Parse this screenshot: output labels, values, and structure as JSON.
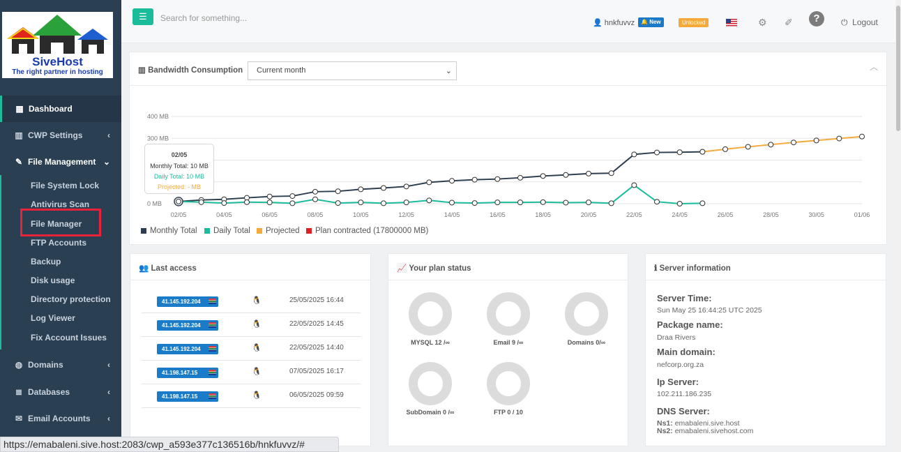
{
  "brand": {
    "name": "SiveHost",
    "tagline": "The right partner in hosting"
  },
  "sidebar": {
    "items": [
      {
        "label": "Dashboard",
        "icon": "dashboard-icon"
      },
      {
        "label": "CWP Settings",
        "icon": "bar-chart-icon"
      },
      {
        "label": "File Management",
        "icon": "edit-icon"
      },
      {
        "label": "Domains",
        "icon": "globe-icon"
      },
      {
        "label": "Databases",
        "icon": "database-icon"
      },
      {
        "label": "Email Accounts",
        "icon": "envelope-icon"
      }
    ],
    "file_management_sub": [
      "File System Lock",
      "Antivirus Scan",
      "File Manager",
      "FTP Accounts",
      "Backup",
      "Disk usage",
      "Directory protection",
      "Log Viewer",
      "Fix Account Issues"
    ]
  },
  "topbar": {
    "search_placeholder": "Search for something...",
    "username": "hnkfuvvz",
    "new_badge": "New",
    "unlocked_badge": "Unlocked",
    "logout_label": "Logout"
  },
  "bandwidth": {
    "title": "Bandwidth Consumption",
    "period": "Current month",
    "tooltip": {
      "date": "02/05",
      "monthly": "Monthly Total: 10 MB",
      "daily": "Daily Total: 10 MB",
      "projected": "Projected: - MB"
    },
    "legend": [
      "Monthly Total",
      "Daily Total",
      "Projected",
      "Plan contracted (17800000 MB)"
    ],
    "colors": {
      "monthly": "#2c3e50",
      "daily": "#1abc9c",
      "projected": "#f5a93a",
      "plan": "#e02020"
    }
  },
  "chart_data": {
    "type": "line",
    "ylim": [
      0,
      400
    ],
    "yticks": [
      "0 MB",
      "100 MB",
      "200 MB",
      "300 MB",
      "400 MB"
    ],
    "yticks_visible": [
      "0 MB",
      "300 MB",
      "400 MB"
    ],
    "xticks": [
      "02/05",
      "04/05",
      "06/05",
      "08/05",
      "10/05",
      "12/05",
      "14/05",
      "16/05",
      "18/05",
      "20/05",
      "22/05",
      "24/05",
      "26/05",
      "28/05",
      "30/05",
      "01/06"
    ],
    "series": [
      {
        "name": "Monthly Total",
        "x_start_day": 2,
        "values": [
          10,
          17,
          20,
          27,
          33,
          35,
          55,
          57,
          66,
          72,
          79,
          98,
          105,
          110,
          113,
          119,
          127,
          132,
          138,
          140,
          226,
          235,
          236,
          238
        ]
      },
      {
        "name": "Daily Total",
        "x_start_day": 2,
        "values": [
          10,
          7,
          3,
          7,
          6,
          2,
          20,
          3,
          6,
          2,
          6,
          15,
          5,
          3,
          6,
          6,
          7,
          5,
          6,
          2,
          85,
          9,
          0,
          2
        ]
      },
      {
        "name": "Projected",
        "x_start_day": 25,
        "values": [
          238,
          250,
          261,
          271,
          281,
          290,
          299,
          308
        ]
      }
    ]
  },
  "last_access": {
    "title": "Last access",
    "rows": [
      {
        "ip": "41.145.192.204",
        "date": "25/05/2025 16:44"
      },
      {
        "ip": "41.145.192.204",
        "date": "22/05/2025 14:45"
      },
      {
        "ip": "41.145.192.204",
        "date": "22/05/2025 14:40"
      },
      {
        "ip": "41.198.147.15",
        "date": "07/05/2025 16:17"
      },
      {
        "ip": "41.198.147.15",
        "date": "06/05/2025 09:59"
      }
    ]
  },
  "plan_status": {
    "title": "Your plan status",
    "items": [
      "MYSQL 12 /∞",
      "Email 9 /∞",
      "Domains 0/∞",
      "SubDomain 0 /∞",
      "FTP 0 / 10"
    ]
  },
  "server_info": {
    "title": "Server information",
    "server_time_label": "Server Time:",
    "server_time": "Sun May 25 16:44:25 UTC 2025",
    "package_label": "Package name:",
    "package": "Draa Rivers",
    "domain_label": "Main domain:",
    "domain": "nefcorp.org.za",
    "ip_label": "Ip Server:",
    "ip": "102.211.186.235",
    "dns_label": "DNS Server:",
    "ns1_label": "Ns1:",
    "ns1": "emabaleni.sive.host",
    "ns2_label": "Ns2:",
    "ns2": "emabaleni.sivehost.com"
  },
  "status_url": "https://emabaleni.sive.host:2083/cwp_a593e377c136516b/hnkfuvvz/#"
}
